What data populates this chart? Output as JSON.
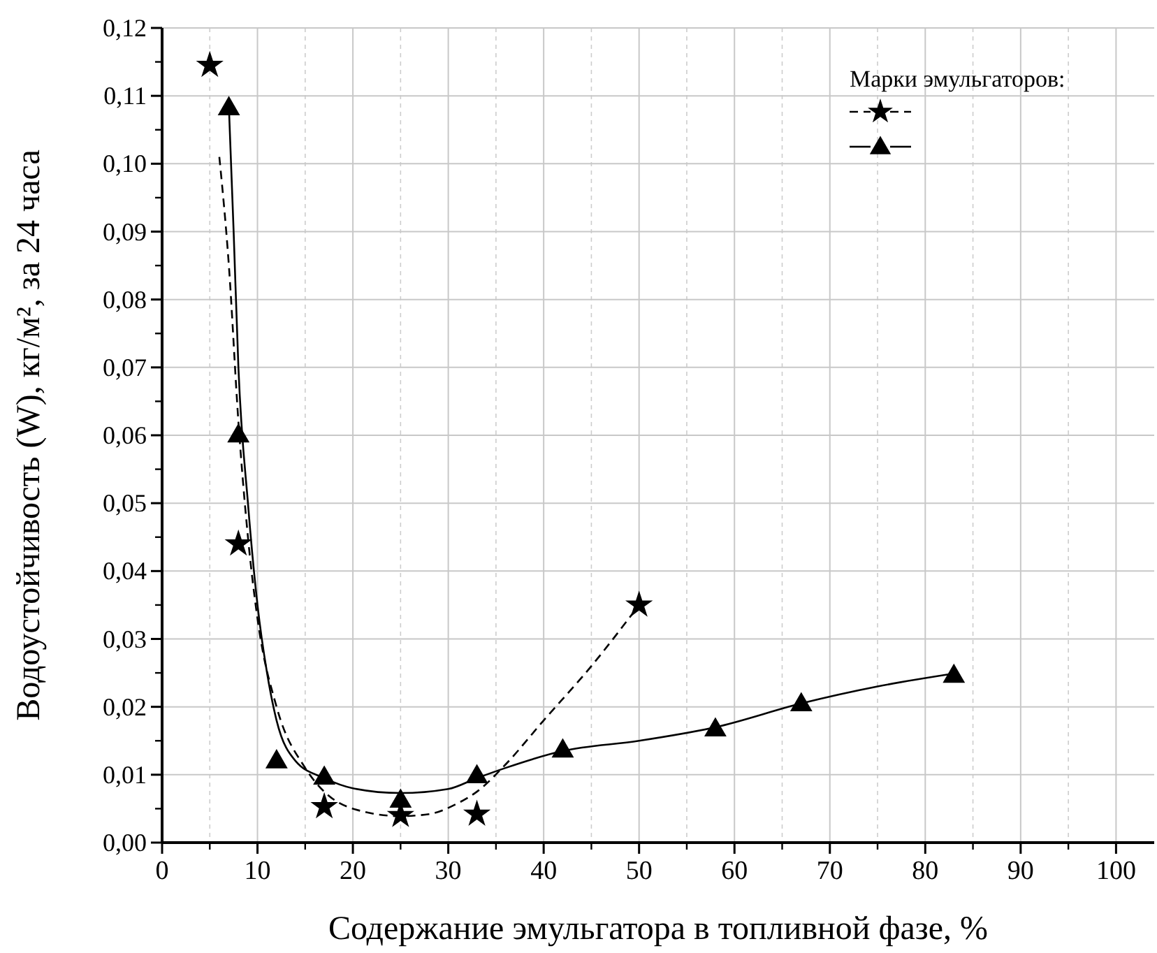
{
  "chart_data": {
    "type": "scatter",
    "xlabel": "Содержание эмульгатора в топливной фазе, %",
    "ylabel": "Водоустойчивость (W), кг/м², за 24 часа",
    "annotations": [
      "Марки эмульгаторов:"
    ],
    "grid": true,
    "xlim": [
      0,
      104
    ],
    "xticks": [
      0,
      10,
      20,
      30,
      40,
      50,
      60,
      70,
      80,
      90,
      100
    ],
    "ylim": [
      0,
      0.12
    ],
    "yticks": [
      {
        "value": 0,
        "label": "0,00"
      },
      {
        "value": 0.01,
        "label": "0,01"
      },
      {
        "value": 0.02,
        "label": "0,02"
      },
      {
        "value": 0.03,
        "label": "0,03"
      },
      {
        "value": 0.04,
        "label": "0,04"
      },
      {
        "value": 0.05,
        "label": "0,05"
      },
      {
        "value": 0.06,
        "label": "0,06"
      },
      {
        "value": 0.07,
        "label": "0,07"
      },
      {
        "value": 0.08,
        "label": "0,08"
      },
      {
        "value": 0.09,
        "label": "0,09"
      },
      {
        "value": 0.1,
        "label": "0,10"
      },
      {
        "value": 0.11,
        "label": "0,11"
      },
      {
        "value": 0.12,
        "label": "0,12"
      }
    ],
    "series": [
      {
        "type": "line",
        "line_style": "dashed",
        "color": "#000000",
        "x": [
          6,
          7,
          8,
          9,
          10,
          12,
          15,
          17,
          20,
          25,
          28,
          31,
          33,
          36,
          40,
          45,
          50
        ],
        "values": [
          0.101,
          0.085,
          0.062,
          0.045,
          0.033,
          0.02,
          0.011,
          0.0075,
          0.005,
          0.0039,
          0.0042,
          0.0058,
          0.0075,
          0.0115,
          0.018,
          0.026,
          0.035
        ]
      },
      {
        "type": "line",
        "line_style": "solid",
        "color": "#000000",
        "x": [
          7,
          7.5,
          8,
          9,
          10,
          11,
          12,
          14,
          17,
          20,
          25,
          30,
          33,
          36,
          42,
          50,
          58,
          67,
          75,
          83
        ],
        "values": [
          0.1085,
          0.09,
          0.07,
          0.05,
          0.035,
          0.025,
          0.018,
          0.012,
          0.0095,
          0.008,
          0.0073,
          0.0079,
          0.0095,
          0.011,
          0.0135,
          0.015,
          0.017,
          0.0205,
          0.023,
          0.0249
        ]
      },
      {
        "marker": "star",
        "color": "#000000",
        "x": [
          5,
          8,
          17,
          25,
          33,
          50
        ],
        "values": [
          0.1145,
          0.044,
          0.0053,
          0.004,
          0.0042,
          0.035
        ]
      },
      {
        "marker": "triangle",
        "color": "#000000",
        "x": [
          7,
          8,
          12,
          17,
          25,
          33,
          42,
          58,
          67,
          83
        ],
        "values": [
          0.1085,
          0.0603,
          0.0123,
          0.0099,
          0.0065,
          0.0101,
          0.0139,
          0.017,
          0.0207,
          0.0249
        ]
      }
    ]
  }
}
